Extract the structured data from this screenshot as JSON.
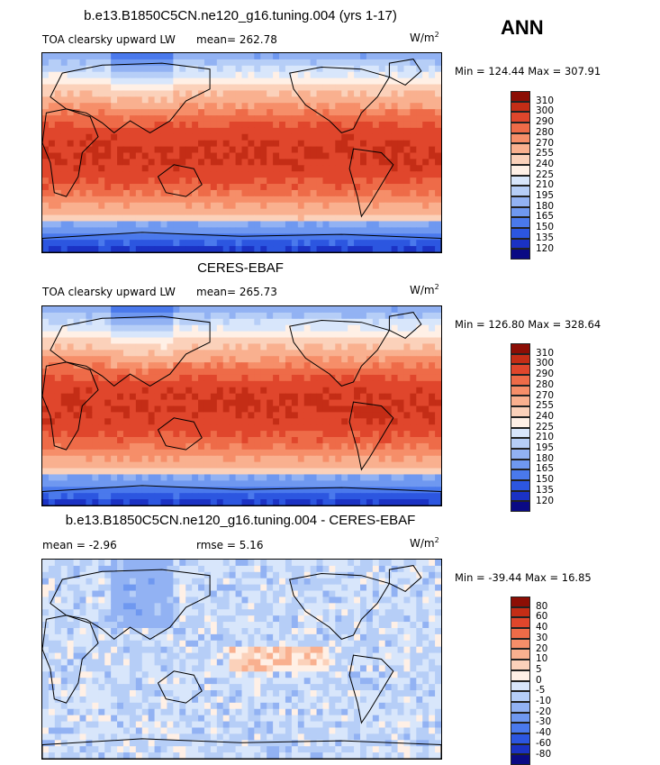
{
  "header": {
    "season": "ANN"
  },
  "palette": {
    "abs": [
      "#0a0a84",
      "#1b32c4",
      "#2c56e0",
      "#4a79ec",
      "#6f98f0",
      "#92b2f3",
      "#b6cef7",
      "#d8e6fb",
      "#fff0e6",
      "#fbd1ba",
      "#f9b08f",
      "#f68e69",
      "#ee6b48",
      "#e0462c",
      "#c42d16",
      "#8c0e05"
    ],
    "diff": [
      "#0a0a84",
      "#1b32c4",
      "#2c56e0",
      "#4a79ec",
      "#6f98f0",
      "#92b2f3",
      "#b6cef7",
      "#d8e6fb",
      "#fff0e6",
      "#fbd1ba",
      "#f9b08f",
      "#f68e69",
      "#ee6b48",
      "#e0462c",
      "#c42d16",
      "#8c0e05"
    ]
  },
  "panels": [
    {
      "title": "b.e13.B1850C5CN.ne120_g16.tuning.004 (yrs 1-17)",
      "left_label": "TOA clearsky upward LW",
      "mean_text": "mean= 262.78",
      "units": "W/m",
      "units_sup": "2",
      "stats": "Min = 124.44 Max = 307.91",
      "colorbar_labels": [
        "310",
        "300",
        "290",
        "280",
        "270",
        "255",
        "240",
        "225",
        "210",
        "195",
        "180",
        "165",
        "150",
        "135",
        "120"
      ],
      "type": "abs",
      "seed": 3
    },
    {
      "title": "CERES-EBAF",
      "left_label": "TOA clearsky upward LW",
      "mean_text": "mean= 265.73",
      "units": "W/m",
      "units_sup": "2",
      "stats": "Min = 126.80 Max = 328.64",
      "colorbar_labels": [
        "310",
        "300",
        "290",
        "280",
        "270",
        "255",
        "240",
        "225",
        "210",
        "195",
        "180",
        "165",
        "150",
        "135",
        "120"
      ],
      "type": "abs",
      "seed": 7
    },
    {
      "title": "b.e13.B1850C5CN.ne120_g16.tuning.004 - CERES-EBAF",
      "left_label": "mean =   -2.96",
      "mean_text": "rmse =    5.16",
      "units": "W/m",
      "units_sup": "2",
      "stats": "Min = -39.44 Max =  16.85",
      "colorbar_labels": [
        "80",
        "60",
        "40",
        "30",
        "20",
        "10",
        "5",
        "0",
        "-5",
        "-10",
        "-20",
        "-30",
        "-40",
        "-60",
        "-80"
      ],
      "type": "diff",
      "seed": 11
    }
  ]
}
